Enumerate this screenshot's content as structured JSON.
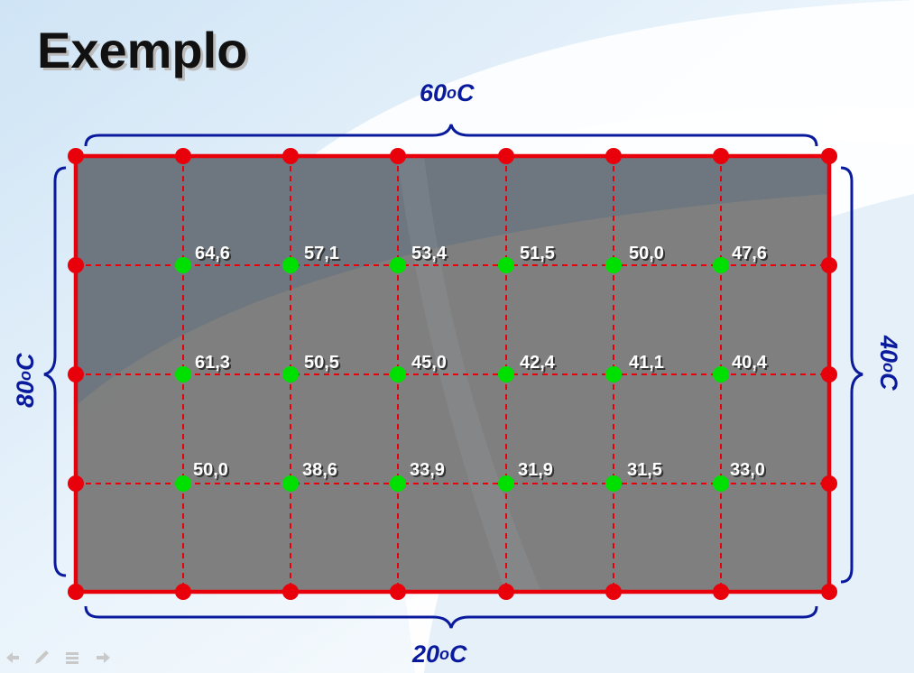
{
  "title": "Exemplo",
  "boundary": {
    "top": "60",
    "right": "40",
    "bottom": "20",
    "left": "80",
    "degree_symbol": "o",
    "unit": "C"
  },
  "interior_values": [
    [
      "64,6",
      "57,1",
      "53,4",
      "51,5",
      "50,0",
      "47,6"
    ],
    [
      "61,3",
      "50,5",
      "45,0",
      "42,4",
      "41,1",
      "40,4"
    ],
    [
      "50,0",
      "38,6",
      "33,9",
      "31,9",
      "31,5",
      "33,0"
    ]
  ],
  "colors": {
    "plate": "#7a7a7a",
    "grid": "#e8000b",
    "boundary_node": "#e8000b",
    "interior_node": "#00e000",
    "brace": "#0a1a9c",
    "label_text": "#ffffff"
  },
  "nav_icons": [
    "prev-icon",
    "pen-icon",
    "menu-icon",
    "next-icon"
  ]
}
